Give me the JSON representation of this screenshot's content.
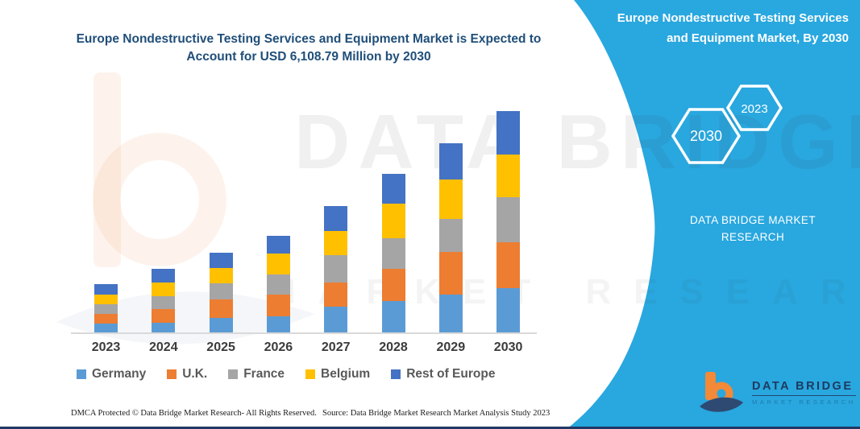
{
  "main_title": "Europe Nondestructive Testing Services and Equipment Market is Expected to Account for USD 6,108.79 Million by 2030",
  "watermark": {
    "line1": "DATA BRIDGE",
    "line2": "MARKET RESEARCH"
  },
  "chart_data": {
    "type": "bar",
    "stacked": true,
    "unit": "USD Million",
    "title": "Europe Nondestructive Testing Services and Equipment Market",
    "categories": [
      "2023",
      "2024",
      "2025",
      "2026",
      "2027",
      "2028",
      "2029",
      "2030"
    ],
    "series": [
      {
        "name": "Germany",
        "color": "#5B9BD5",
        "values": [
          245,
          265,
          405,
          443,
          715,
          865,
          1035,
          1220
        ]
      },
      {
        "name": "U.K.",
        "color": "#ED7D31",
        "values": [
          265,
          385,
          515,
          590,
          650,
          885,
          1180,
          1255
        ]
      },
      {
        "name": "France",
        "color": "#A5A5A5",
        "values": [
          265,
          355,
          443,
          554,
          775,
          850,
          910,
          1255
        ]
      },
      {
        "name": "Belgium",
        "color": "#FFC000",
        "values": [
          265,
          370,
          405,
          590,
          665,
          945,
          1085,
          1180
        ]
      },
      {
        "name": "Rest of Europe",
        "color": "#4472C4",
        "values": [
          290,
          385,
          430,
          480,
          680,
          825,
          1010,
          1198.79
        ]
      }
    ],
    "total_2030": 6108.79,
    "ylim": [
      0,
      6500
    ],
    "y_axis_visible": false,
    "grid": false,
    "legend_position": "bottom"
  },
  "right_panel": {
    "panel_color": "#29A7DF",
    "title": "Europe Nondestructive Testing Services and Equipment Market, By 2030",
    "hexagon_large": "2030",
    "hexagon_small": "2023",
    "tagline_line1": "DATA BRIDGE MARKET",
    "tagline_line2": "RESEARCH",
    "logo_name": "DATA BRIDGE",
    "logo_sub": "MARKET RESEARCH"
  },
  "footer": {
    "left": "DMCA Protected © Data Bridge Market Research-  All Rights Reserved.",
    "right": "Source: Data Bridge Market Research  Market Analysis Study 2023"
  }
}
